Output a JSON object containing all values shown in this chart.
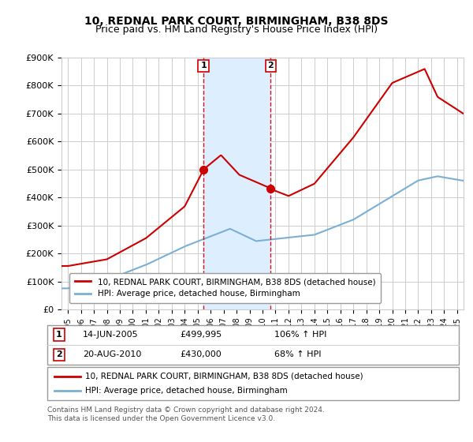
{
  "title": "10, REDNAL PARK COURT, BIRMINGHAM, B38 8DS",
  "subtitle": "Price paid vs. HM Land Registry's House Price Index (HPI)",
  "ylim": [
    0,
    900000
  ],
  "yticks": [
    0,
    100000,
    200000,
    300000,
    400000,
    500000,
    600000,
    700000,
    800000,
    900000
  ],
  "ytick_labels": [
    "£0",
    "£100K",
    "£200K",
    "£300K",
    "£400K",
    "£500K",
    "£600K",
    "£700K",
    "£800K",
    "£900K"
  ],
  "sale1_date": 2005.45,
  "sale1_price": 499995,
  "sale2_date": 2010.63,
  "sale2_price": 430000,
  "legend_red": "10, REDNAL PARK COURT, BIRMINGHAM, B38 8DS (detached house)",
  "legend_blue": "HPI: Average price, detached house, Birmingham",
  "table_row1_num": "1",
  "table_row1_date": "14-JUN-2005",
  "table_row1_price": "£499,995",
  "table_row1_hpi": "106% ↑ HPI",
  "table_row2_num": "2",
  "table_row2_date": "20-AUG-2010",
  "table_row2_price": "£430,000",
  "table_row2_hpi": "68% ↑ HPI",
  "footer": "Contains HM Land Registry data © Crown copyright and database right 2024.\nThis data is licensed under the Open Government Licence v3.0.",
  "red_color": "#cc0000",
  "blue_color": "#7bafd4",
  "shaded_color": "#ddeeff",
  "marker_box_color": "#cc0000",
  "grid_color": "#cccccc",
  "bg_color": "#ffffff",
  "xstart": 1994.5,
  "xend": 2025.5
}
